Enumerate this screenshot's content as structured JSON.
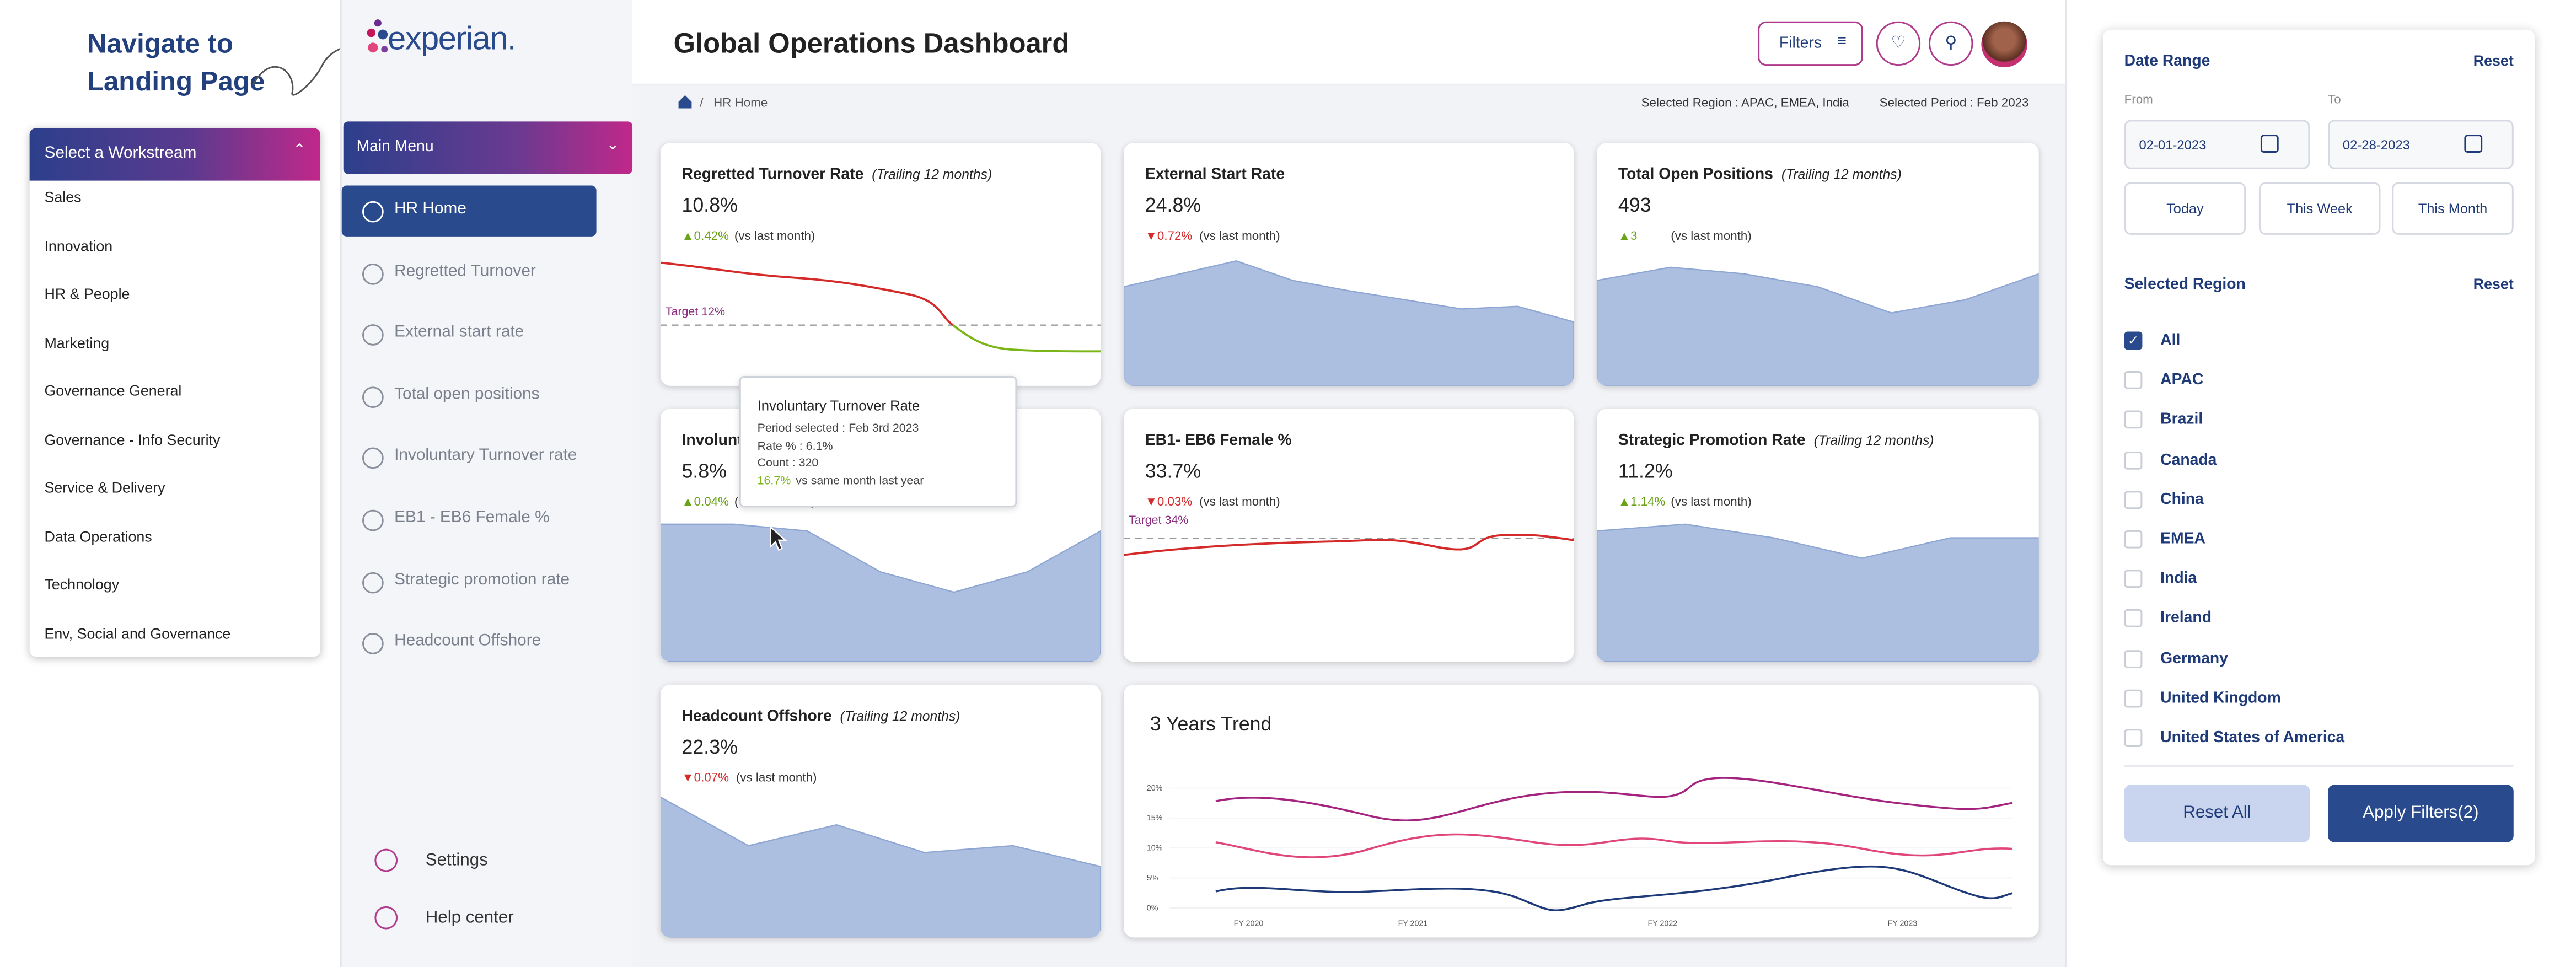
{
  "annotation": "Navigate to Landing Page",
  "workstream": {
    "placeholder": "Select a Workstream",
    "items": [
      "Sales",
      "Innovation",
      "HR & People",
      "Marketing",
      "Governance General",
      "Governance - Info Security",
      "Service & Delivery",
      "Data Operations",
      "Technology",
      "Env, Social and Governance"
    ]
  },
  "brand": "experian.",
  "menu": {
    "title": "Main Menu",
    "items": [
      "HR Home",
      "Regretted Turnover",
      "External start rate",
      "Total open positions",
      "Involuntary Turnover rate",
      "EB1 - EB6  Female %",
      "Strategic promotion rate",
      "Headcount Offshore"
    ],
    "footer": [
      "Settings",
      "Help center"
    ]
  },
  "header": {
    "title": "Global Operations Dashboard",
    "filters": "Filters"
  },
  "breadcrumb": {
    "current": "HR Home",
    "region": "Selected Region : APAC, EMEA, India",
    "period": "Selected Period : Feb 2023"
  },
  "cards": [
    {
      "title": "Regretted Turnover Rate",
      "qualifier": "(Trailing 12 months)",
      "value": "10.8%",
      "change": "▲0.42%",
      "compare": "(vs last month)",
      "target": "Target  12%"
    },
    {
      "title": "External Start Rate",
      "value": "24.8%",
      "change": "▼0.72%",
      "compare": "(vs last month)"
    },
    {
      "title": "Total Open Positions",
      "qualifier": "(Trailing 12 months)",
      "value": "493",
      "change": "▲3",
      "compare": "(vs last month)"
    },
    {
      "title": "Involuntary Turnover Rate",
      "value": "5.8%",
      "change": "▲0.04%",
      "compare": "(vs last month)"
    },
    {
      "title": "EB1- EB6 Female %",
      "value": "33.7%",
      "change": "▼0.03%",
      "compare": "(vs last month)",
      "target": "Target  34%"
    },
    {
      "title": "Strategic Promotion Rate",
      "qualifier": "(Trailing 12 months)",
      "value": "11.2%",
      "change": "▲1.14%",
      "compare": "(vs last month)"
    },
    {
      "title": "Headcount Offshore",
      "qualifier": "(Trailing 12 months)",
      "value": "22.3%",
      "change": "▼0.07%",
      "compare": "(vs last month)"
    }
  ],
  "tooltip": {
    "title": "Involuntary Turnover Rate",
    "lines": [
      "Period selected : Feb 3rd 2023",
      "Rate % : 6.1%",
      "Count : 320"
    ],
    "highlight": "16.7%",
    "highlight_suffix": "vs same month last year"
  },
  "trend": {
    "title": "3 Years Trend",
    "yticks": [
      "20%",
      "15%",
      "10%",
      "5%",
      "0%"
    ],
    "xticks": [
      "FY 2020",
      "FY 2021",
      "FY 2022",
      "FY 2023"
    ]
  },
  "filters": {
    "date_range": "Date Range",
    "reset": "Reset",
    "from": "From",
    "to": "To",
    "from_value": "02-01-2023",
    "to_value": "02-28-2023",
    "presets": [
      "Today",
      "This Week",
      "This Month"
    ],
    "region_title": "Selected Region",
    "region_reset": "Reset",
    "regions": [
      "All",
      "APAC",
      "Brazil",
      "Canada",
      "China",
      "EMEA",
      "India",
      "Ireland",
      "Germany",
      "United Kingdom",
      "United States of America"
    ],
    "reset_all": "Reset All",
    "apply": "Apply Filters(2)"
  }
}
